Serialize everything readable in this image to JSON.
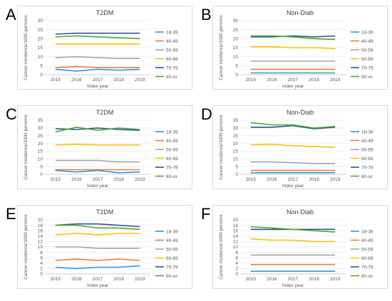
{
  "panels": [
    {
      "letter": "A",
      "title": "T2DM"
    },
    {
      "letter": "B",
      "title": "Non-Diab"
    },
    {
      "letter": "C",
      "title": "T2DM"
    },
    {
      "letter": "D",
      "title": "Non-Diab"
    },
    {
      "letter": "E",
      "title": "T2DM"
    },
    {
      "letter": "F",
      "title": "Non-Diab"
    }
  ],
  "series_colors": {
    "18-39": "#2e9ad0",
    "40-49": "#ed7d31",
    "50-59": "#a5a5a5",
    "60-69": "#ffc000",
    "70-79": "#2f5597",
    "80-xx": "#4ea72e"
  },
  "chart_data": [
    {
      "type": "line",
      "title": "T2DM",
      "xlabel": "Index year",
      "ylabel": "Cancer incidence/1000 persons",
      "categories": [
        "2015",
        "2016",
        "2017",
        "2018",
        "2019"
      ],
      "ylim": [
        0,
        30
      ],
      "yticks": [
        0,
        5,
        10,
        15,
        20,
        25,
        30
      ],
      "legend": "right",
      "series": [
        {
          "name": "18-39",
          "values": [
            3,
            2,
            3,
            2.5,
            3
          ]
        },
        {
          "name": "40-49",
          "values": [
            4,
            4.5,
            4,
            4,
            4
          ]
        },
        {
          "name": "50-59",
          "values": [
            9.5,
            10,
            9.5,
            9,
            9
          ]
        },
        {
          "name": "60-69",
          "values": [
            17,
            17,
            17,
            17,
            17
          ]
        },
        {
          "name": "70-79",
          "values": [
            22.5,
            23,
            23,
            23,
            23
          ]
        },
        {
          "name": "80-xx",
          "values": [
            21,
            21.5,
            21,
            20.5,
            20
          ]
        }
      ]
    },
    {
      "type": "line",
      "title": "Non-Diab",
      "xlabel": "Index year",
      "ylabel": "Cancer incidence/1000 persons",
      "categories": [
        "2015",
        "2016",
        "2017",
        "2018",
        "2019"
      ],
      "ylim": [
        0,
        30
      ],
      "yticks": [
        0,
        5,
        10,
        15,
        20,
        25,
        30
      ],
      "legend": "right",
      "series": [
        {
          "name": "18-39",
          "values": [
            1,
            1,
            1,
            1,
            1
          ]
        },
        {
          "name": "40-49",
          "values": [
            3,
            3,
            3,
            3,
            3
          ]
        },
        {
          "name": "50-59",
          "values": [
            7.5,
            7.5,
            7.5,
            7.5,
            7.5
          ]
        },
        {
          "name": "60-69",
          "values": [
            15.5,
            15.5,
            15,
            15,
            14.5
          ]
        },
        {
          "name": "70-79",
          "values": [
            21,
            21,
            21.5,
            21,
            21.5
          ]
        },
        {
          "name": "80-xx",
          "values": [
            21.5,
            21.5,
            21,
            20,
            19.5
          ]
        }
      ]
    },
    {
      "type": "line",
      "title": "T2DM",
      "xlabel": "Index year",
      "ylabel": "Cancer incidence/1000 persons",
      "categories": [
        "2015",
        "2016",
        "2017",
        "2018",
        "2019"
      ],
      "ylim": [
        0,
        35
      ],
      "yticks": [
        0,
        5,
        10,
        15,
        20,
        25,
        30,
        35
      ],
      "legend": "right",
      "series": [
        {
          "name": "18-39",
          "values": [
            2.5,
            1.5,
            2.5,
            1,
            1.5
          ]
        },
        {
          "name": "40-49",
          "values": [
            3,
            3,
            3,
            3,
            3
          ]
        },
        {
          "name": "50-59",
          "values": [
            9,
            9,
            9,
            8,
            8
          ]
        },
        {
          "name": "60-69",
          "values": [
            19,
            19.5,
            19,
            19,
            19
          ]
        },
        {
          "name": "70-79",
          "values": [
            29.5,
            29,
            30,
            29,
            28.5
          ]
        },
        {
          "name": "80-xx",
          "values": [
            27.5,
            30.5,
            28.5,
            30,
            29
          ]
        }
      ]
    },
    {
      "type": "line",
      "title": "Non-Diab",
      "xlabel": "Index year",
      "ylabel": "Cancer incidence/1000 persons",
      "categories": [
        "2015",
        "2016",
        "2017",
        "2018",
        "2019"
      ],
      "ylim": [
        0,
        35
      ],
      "yticks": [
        0,
        5,
        10,
        15,
        20,
        25,
        30,
        35
      ],
      "legend": "right",
      "series": [
        {
          "name": "18-39",
          "values": [
            1,
            1,
            1,
            1,
            1
          ]
        },
        {
          "name": "40-49",
          "values": [
            2.5,
            2.5,
            2.5,
            2.5,
            2.5
          ]
        },
        {
          "name": "50-59",
          "values": [
            8,
            8,
            7.5,
            7,
            7
          ]
        },
        {
          "name": "60-69",
          "values": [
            19,
            19.5,
            18.5,
            18,
            17.5
          ]
        },
        {
          "name": "70-79",
          "values": [
            30.5,
            30.5,
            31.5,
            29.5,
            30.5
          ]
        },
        {
          "name": "80-xx",
          "values": [
            33.5,
            32,
            32,
            30,
            31
          ]
        }
      ]
    },
    {
      "type": "line",
      "title": "T2DM",
      "xlabel": "Index year",
      "ylabel": "Cancer incidence/1000 persons",
      "categories": [
        "2015",
        "2016",
        "2017",
        "2018",
        "2019"
      ],
      "ylim": [
        0,
        20
      ],
      "yticks": [
        0,
        2,
        4,
        6,
        8,
        10,
        12,
        14,
        16,
        18,
        20
      ],
      "legend": "right",
      "series": [
        {
          "name": "18-39",
          "values": [
            2.5,
            2,
            2.5,
            2.5,
            3
          ]
        },
        {
          "name": "40-49",
          "values": [
            5,
            5.5,
            5,
            5.5,
            5
          ]
        },
        {
          "name": "50-59",
          "values": [
            10,
            10,
            9.5,
            9.5,
            9.5
          ]
        },
        {
          "name": "60-69",
          "values": [
            14.5,
            15,
            14.5,
            15,
            15
          ]
        },
        {
          "name": "70-79",
          "values": [
            18,
            18.5,
            18.5,
            18,
            17.5
          ]
        },
        {
          "name": "80-xx",
          "values": [
            18,
            18,
            17,
            17,
            16.5
          ]
        }
      ]
    },
    {
      "type": "line",
      "title": "Non-Diab",
      "xlabel": "Index year",
      "ylabel": "Cancer incidence/1000 persons",
      "categories": [
        "2015",
        "2016",
        "2017",
        "2018",
        "2019"
      ],
      "ylim": [
        0,
        20
      ],
      "yticks": [
        0,
        2,
        4,
        6,
        8,
        10,
        12,
        14,
        16,
        18,
        20
      ],
      "legend": "right",
      "series": [
        {
          "name": "18-39",
          "values": [
            1,
            1,
            1,
            1,
            1
          ]
        },
        {
          "name": "40-49",
          "values": [
            3.5,
            3.5,
            3.5,
            3.5,
            3.5
          ]
        },
        {
          "name": "50-59",
          "values": [
            7,
            7,
            7,
            7,
            7
          ]
        },
        {
          "name": "60-69",
          "values": [
            13,
            12.5,
            12.5,
            12,
            12
          ]
        },
        {
          "name": "70-79",
          "values": [
            16.5,
            16.5,
            16.5,
            16.5,
            16.5
          ]
        },
        {
          "name": "80-xx",
          "values": [
            17.5,
            17,
            16.5,
            16,
            15.5
          ]
        }
      ]
    }
  ]
}
